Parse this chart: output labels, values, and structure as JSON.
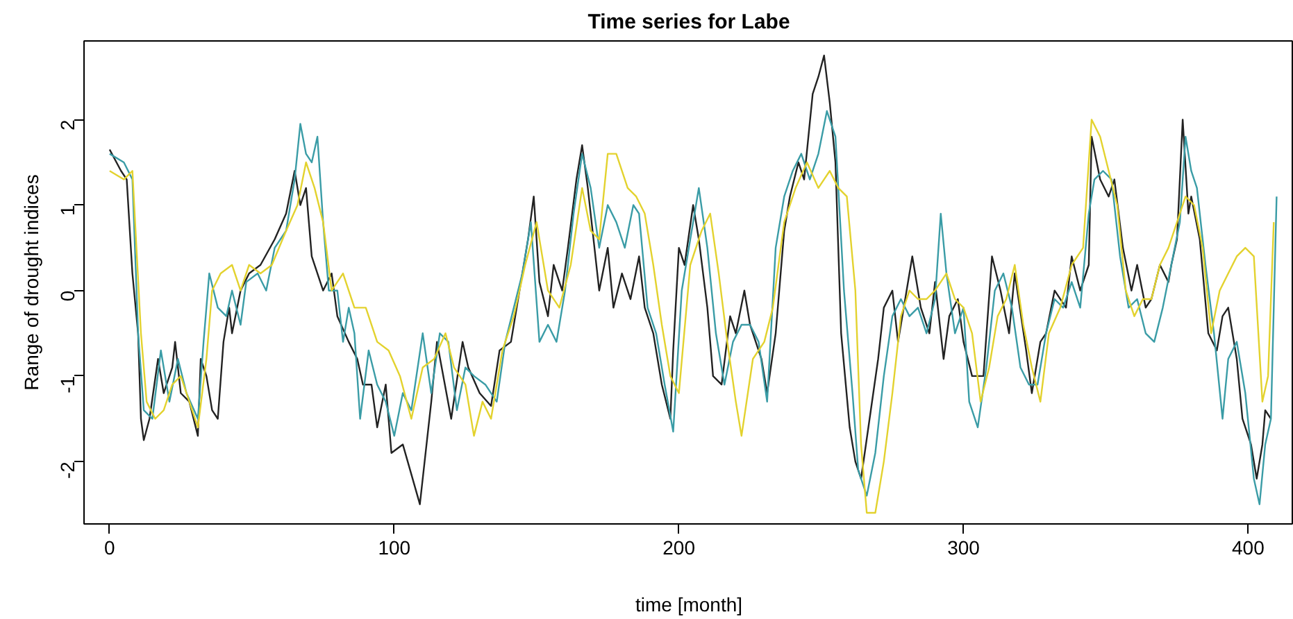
{
  "chart_data": {
    "type": "line",
    "title": "Time series for Labe",
    "xlabel": "time [month]",
    "ylabel": "Range of drought indices",
    "xlim": [
      -9,
      416
    ],
    "ylim": [
      -2.73,
      2.92
    ],
    "xticks": [
      0,
      100,
      200,
      300,
      400
    ],
    "yticks": [
      -2,
      -1,
      0,
      1,
      2
    ],
    "grid": false,
    "line_style": "solid",
    "series": [
      {
        "color": "#222222",
        "x": [
          0,
          4,
          6,
          8,
          10,
          11,
          12,
          14,
          17,
          19,
          22,
          23,
          25,
          28,
          31,
          32,
          34,
          36,
          38,
          40,
          42,
          43,
          46,
          49,
          53,
          58,
          62,
          65,
          67,
          69,
          71,
          75,
          78,
          80,
          84,
          87,
          89,
          92,
          94,
          97,
          99,
          103,
          109,
          113,
          115,
          120,
          124,
          126,
          130,
          134,
          137,
          141,
          144,
          147,
          149,
          151,
          154,
          156,
          159,
          161,
          164,
          166,
          168,
          172,
          175,
          177,
          180,
          183,
          186,
          188,
          191,
          194,
          197,
          198,
          200,
          202,
          205,
          207,
          210,
          212,
          215,
          218,
          220,
          223,
          225,
          229,
          231,
          234,
          237,
          239,
          242,
          244,
          247,
          249,
          251,
          253,
          255,
          257,
          260,
          262,
          264,
          267,
          270,
          272,
          275,
          277,
          280,
          282,
          285,
          288,
          290,
          293,
          295,
          298,
          300,
          303,
          307,
          310,
          313,
          316,
          318,
          322,
          324,
          327,
          329,
          332,
          336,
          338,
          341,
          344,
          345,
          348,
          351,
          353,
          356,
          359,
          361,
          364,
          366,
          369,
          372,
          373,
          375,
          377,
          379,
          380,
          383,
          386,
          389,
          391,
          393,
          396,
          398,
          401,
          403,
          405,
          406,
          408
        ],
        "values": [
          1.65,
          1.4,
          1.3,
          0.2,
          -0.5,
          -1.5,
          -1.75,
          -1.5,
          -0.8,
          -1.2,
          -0.9,
          -0.6,
          -1.2,
          -1.3,
          -1.7,
          -0.8,
          -1.0,
          -1.4,
          -1.5,
          -0.6,
          -0.2,
          -0.5,
          0.0,
          0.2,
          0.3,
          0.6,
          0.9,
          1.4,
          1.0,
          1.2,
          0.4,
          0.0,
          0.2,
          -0.3,
          -0.6,
          -0.8,
          -1.1,
          -1.1,
          -1.6,
          -1.1,
          -1.9,
          -1.8,
          -2.5,
          -1.3,
          -0.6,
          -1.5,
          -0.6,
          -0.9,
          -1.2,
          -1.35,
          -0.7,
          -0.6,
          0.0,
          0.6,
          1.1,
          0.1,
          -0.3,
          0.3,
          0.0,
          0.5,
          1.3,
          1.7,
          1.2,
          0.0,
          0.5,
          -0.2,
          0.2,
          -0.1,
          0.4,
          -0.2,
          -0.5,
          -1.1,
          -1.5,
          -0.7,
          0.5,
          0.3,
          1.0,
          0.6,
          -0.2,
          -1.0,
          -1.1,
          -0.3,
          -0.5,
          0.0,
          -0.4,
          -0.8,
          -1.2,
          -0.5,
          0.7,
          1.1,
          1.5,
          1.3,
          2.3,
          2.5,
          2.75,
          2.2,
          1.5,
          -0.5,
          -1.6,
          -2.0,
          -2.2,
          -1.5,
          -0.8,
          -0.2,
          0.0,
          -0.6,
          0.0,
          0.4,
          -0.2,
          -0.5,
          0.1,
          -0.8,
          -0.3,
          -0.1,
          -0.6,
          -1.0,
          -1.0,
          0.4,
          0.0,
          -0.5,
          0.2,
          -0.7,
          -1.2,
          -0.6,
          -0.5,
          0.0,
          -0.2,
          0.4,
          0.0,
          0.3,
          1.8,
          1.3,
          1.1,
          1.3,
          0.5,
          0.0,
          0.3,
          -0.2,
          -0.1,
          0.3,
          0.1,
          0.3,
          0.6,
          2.0,
          0.9,
          1.1,
          0.6,
          -0.5,
          -0.7,
          -0.3,
          -0.2,
          -0.8,
          -1.5,
          -1.8,
          -2.2,
          -1.8,
          -1.4,
          -1.5
        ]
      },
      {
        "color": "#3a9ca6",
        "x": [
          0,
          5,
          8,
          10,
          12,
          15,
          18,
          21,
          24,
          27,
          31,
          33,
          35,
          38,
          41,
          43,
          46,
          48,
          52,
          55,
          58,
          62,
          65,
          67,
          69,
          71,
          73,
          75,
          77,
          80,
          82,
          84,
          86,
          88,
          91,
          94,
          97,
          100,
          103,
          106,
          110,
          113,
          116,
          119,
          122,
          125,
          128,
          132,
          136,
          139,
          142,
          145,
          148,
          151,
          154,
          157,
          160,
          163,
          166,
          169,
          172,
          175,
          178,
          181,
          184,
          186,
          189,
          192,
          195,
          198,
          201,
          204,
          207,
          210,
          213,
          216,
          219,
          222,
          225,
          228,
          231,
          234,
          237,
          240,
          243,
          246,
          249,
          252,
          255,
          258,
          261,
          263,
          266,
          269,
          272,
          275,
          278,
          281,
          284,
          287,
          290,
          292,
          294,
          297,
          300,
          302,
          305,
          308,
          311,
          314,
          317,
          320,
          323,
          326,
          329,
          332,
          335,
          338,
          341,
          344,
          346,
          349,
          352,
          355,
          358,
          361,
          364,
          367,
          370,
          373,
          376,
          378,
          380,
          382,
          385,
          388,
          391,
          393,
          396,
          399,
          402,
          404,
          406,
          408,
          410
        ],
        "values": [
          1.6,
          1.5,
          1.3,
          -0.5,
          -1.4,
          -1.5,
          -0.7,
          -1.3,
          -0.8,
          -1.2,
          -1.5,
          -0.6,
          0.2,
          -0.2,
          -0.3,
          0.0,
          -0.4,
          0.1,
          0.2,
          0.0,
          0.5,
          0.7,
          1.3,
          1.95,
          1.6,
          1.5,
          1.8,
          0.8,
          0.0,
          0.0,
          -0.6,
          -0.2,
          -0.5,
          -1.5,
          -0.7,
          -1.1,
          -1.3,
          -1.7,
          -1.2,
          -1.4,
          -0.5,
          -1.2,
          -0.5,
          -0.6,
          -1.4,
          -0.9,
          -1.0,
          -1.1,
          -1.3,
          -0.6,
          -0.2,
          0.2,
          0.8,
          -0.6,
          -0.4,
          -0.6,
          0.0,
          0.9,
          1.6,
          1.2,
          0.5,
          1.0,
          0.8,
          0.5,
          1.0,
          0.9,
          -0.2,
          -0.5,
          -1.1,
          -1.65,
          0.0,
          0.6,
          1.2,
          0.5,
          -0.5,
          -1.1,
          -0.6,
          -0.4,
          -0.4,
          -0.6,
          -1.3,
          0.5,
          1.1,
          1.4,
          1.6,
          1.3,
          1.6,
          2.1,
          1.8,
          0.0,
          -1.2,
          -2.1,
          -2.4,
          -1.9,
          -1.0,
          -0.3,
          -0.1,
          -0.3,
          -0.2,
          -0.5,
          -0.1,
          0.9,
          0.2,
          -0.5,
          -0.2,
          -1.3,
          -1.6,
          -0.9,
          0.0,
          0.2,
          -0.2,
          -0.9,
          -1.1,
          -1.1,
          -0.5,
          -0.1,
          -0.2,
          0.1,
          -0.2,
          0.9,
          1.3,
          1.4,
          1.3,
          0.4,
          -0.2,
          -0.1,
          -0.5,
          -0.6,
          -0.2,
          0.3,
          0.8,
          1.8,
          1.4,
          1.2,
          0.3,
          -0.5,
          -1.5,
          -0.8,
          -0.6,
          -1.2,
          -2.2,
          -2.5,
          -1.8,
          -1.5,
          1.1
        ]
      },
      {
        "color": "#e3d22e",
        "x": [
          0,
          5,
          8,
          11,
          13,
          16,
          19,
          22,
          25,
          28,
          31,
          34,
          36,
          39,
          43,
          46,
          49,
          53,
          57,
          62,
          66,
          69,
          72,
          75,
          78,
          82,
          86,
          90,
          94,
          98,
          102,
          106,
          110,
          114,
          118,
          121,
          125,
          128,
          131,
          134,
          138,
          142,
          146,
          150,
          154,
          158,
          162,
          166,
          169,
          172,
          175,
          178,
          182,
          185,
          188,
          191,
          194,
          197,
          200,
          204,
          208,
          211,
          214,
          217,
          220,
          222,
          226,
          230,
          233,
          237,
          241,
          245,
          249,
          253,
          256,
          259,
          262,
          264,
          266,
          269,
          272,
          275,
          278,
          281,
          284,
          287,
          290,
          294,
          297,
          300,
          303,
          306,
          309,
          312,
          315,
          318,
          321,
          324,
          327,
          330,
          334,
          338,
          342,
          345,
          348,
          351,
          354,
          357,
          360,
          363,
          366,
          369,
          372,
          375,
          378,
          381,
          384,
          387,
          390,
          393,
          396,
          399,
          402,
          405,
          407,
          409
        ],
        "values": [
          1.4,
          1.3,
          1.4,
          -0.5,
          -1.3,
          -1.5,
          -1.4,
          -1.1,
          -1.0,
          -1.3,
          -1.6,
          -0.8,
          0.0,
          0.2,
          0.3,
          0.0,
          0.3,
          0.2,
          0.3,
          0.7,
          1.0,
          1.5,
          1.2,
          0.8,
          0.0,
          0.2,
          -0.2,
          -0.2,
          -0.6,
          -0.7,
          -1.0,
          -1.5,
          -0.9,
          -0.8,
          -0.5,
          -0.9,
          -1.1,
          -1.7,
          -1.3,
          -1.5,
          -0.7,
          -0.3,
          0.3,
          0.8,
          0.0,
          -0.2,
          0.3,
          1.2,
          0.7,
          0.6,
          1.6,
          1.6,
          1.2,
          1.1,
          0.9,
          0.3,
          -0.4,
          -1.0,
          -1.2,
          0.3,
          0.7,
          0.9,
          0.2,
          -0.6,
          -1.3,
          -1.7,
          -0.8,
          -0.6,
          -0.2,
          0.8,
          1.2,
          1.5,
          1.2,
          1.4,
          1.2,
          1.1,
          0.0,
          -1.8,
          -2.6,
          -2.6,
          -2.0,
          -1.2,
          -0.3,
          0.0,
          -0.1,
          -0.1,
          0.0,
          0.2,
          -0.1,
          -0.2,
          -0.5,
          -1.3,
          -0.9,
          -0.3,
          -0.1,
          0.3,
          -0.4,
          -0.9,
          -1.3,
          -0.5,
          -0.2,
          0.3,
          0.5,
          2.0,
          1.8,
          1.4,
          1.0,
          0.0,
          -0.3,
          -0.1,
          -0.1,
          0.3,
          0.5,
          0.8,
          1.1,
          1.0,
          0.5,
          -0.5,
          0.0,
          0.2,
          0.4,
          0.5,
          0.4,
          -1.3,
          -1.0,
          0.8
        ]
      }
    ]
  }
}
